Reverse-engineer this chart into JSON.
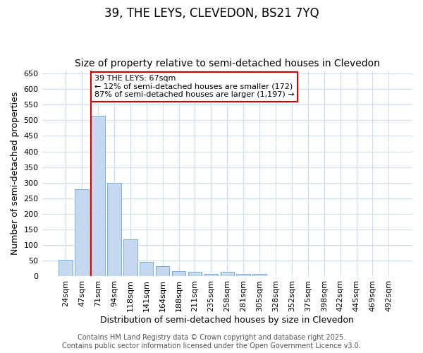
{
  "title1": "39, THE LEYS, CLEVEDON, BS21 7YQ",
  "title2": "Size of property relative to semi-detached houses in Clevedon",
  "xlabel": "Distribution of semi-detached houses by size in Clevedon",
  "ylabel": "Number of semi-detached properties",
  "categories": [
    "24sqm",
    "47sqm",
    "71sqm",
    "94sqm",
    "118sqm",
    "141sqm",
    "164sqm",
    "188sqm",
    "211sqm",
    "235sqm",
    "258sqm",
    "281sqm",
    "305sqm",
    "328sqm",
    "352sqm",
    "375sqm",
    "398sqm",
    "422sqm",
    "445sqm",
    "469sqm",
    "492sqm"
  ],
  "values": [
    52,
    280,
    515,
    300,
    119,
    47,
    33,
    17,
    14,
    8,
    14,
    7,
    7,
    2,
    2,
    2,
    2,
    1,
    1,
    1,
    2
  ],
  "bar_color": "#c5d8f0",
  "bar_edge_color": "#7aafd4",
  "property_label": "39 THE LEYS: 67sqm",
  "annotation_line1": "← 12% of semi-detached houses are smaller (172)",
  "annotation_line2": "87% of semi-detached houses are larger (1,197) →",
  "vline_color": "#cc0000",
  "vline_index": 2,
  "annotation_box_color": "#cc0000",
  "ylim": [
    0,
    660
  ],
  "yticks": [
    0,
    50,
    100,
    150,
    200,
    250,
    300,
    350,
    400,
    450,
    500,
    550,
    600,
    650
  ],
  "background_color": "#ffffff",
  "grid_color": "#d0dcf0",
  "footer_line1": "Contains HM Land Registry data © Crown copyright and database right 2025.",
  "footer_line2": "Contains public sector information licensed under the Open Government Licence v3.0.",
  "title_fontsize": 12,
  "subtitle_fontsize": 10,
  "axis_label_fontsize": 9,
  "tick_fontsize": 8,
  "footer_fontsize": 7
}
